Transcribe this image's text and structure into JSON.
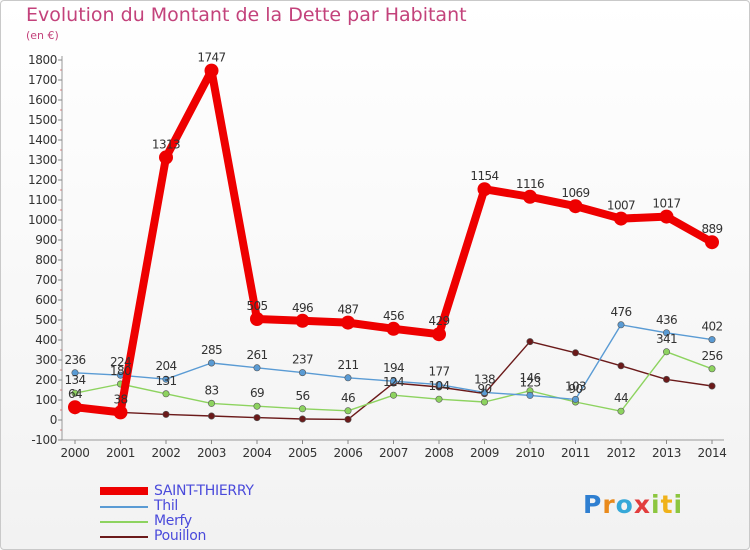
{
  "title": "Evolution du Montant de la Dette par Habitant",
  "unit_label": "(en €)",
  "logo": {
    "text": "Proxiti",
    "letters": [
      {
        "ch": "P",
        "color": "#2f7fd1"
      },
      {
        "ch": "r",
        "color": "#e98a1c"
      },
      {
        "ch": "o",
        "color": "#36a8d8"
      },
      {
        "ch": "x",
        "color": "#e23d3d"
      },
      {
        "ch": "i",
        "color": "#8cc63f"
      },
      {
        "ch": "t",
        "color": "#f0b21a"
      },
      {
        "ch": "i",
        "color": "#8cc63f"
      }
    ]
  },
  "chart_data": {
    "type": "line",
    "title": "Evolution du Montant de la Dette par Habitant",
    "ylabel": "(en €)",
    "xlabel": "",
    "ylim": [
      -100,
      1800
    ],
    "yticks": [
      -100,
      0,
      100,
      200,
      300,
      400,
      500,
      600,
      700,
      800,
      900,
      1000,
      1100,
      1200,
      1300,
      1400,
      1500,
      1600,
      1700,
      1800
    ],
    "grid": false,
    "legend": "bottom-left",
    "categories": [
      "2000",
      "2001",
      "2002",
      "2003",
      "2004",
      "2005",
      "2006",
      "2007",
      "2008",
      "2009",
      "2010",
      "2011",
      "2012",
      "2013",
      "2014"
    ],
    "series": [
      {
        "name": "Pouillon",
        "color": "#6b1a1a",
        "labels": false,
        "values": [
          46,
          38,
          28,
          20,
          12,
          5,
          3,
          185,
          165,
          132,
          392,
          336,
          271,
          203,
          170
        ]
      },
      {
        "name": "Merfy",
        "color": "#8dd35f",
        "labels": true,
        "values": [
          134,
          180,
          131,
          83,
          69,
          56,
          46,
          124,
          104,
          90,
          146,
          90,
          44,
          341,
          256
        ]
      },
      {
        "name": "Thil",
        "color": "#5a9bd4",
        "labels": true,
        "values": [
          236,
          224,
          204,
          285,
          261,
          237,
          211,
          194,
          177,
          138,
          123,
          103,
          476,
          436,
          402
        ]
      },
      {
        "name": "SAINT-THIERRY",
        "color": "#ee0000",
        "labels": true,
        "values": [
          64,
          38,
          1313,
          1747,
          505,
          496,
          487,
          456,
          429,
          1154,
          1116,
          1069,
          1007,
          1017,
          889
        ]
      }
    ]
  }
}
